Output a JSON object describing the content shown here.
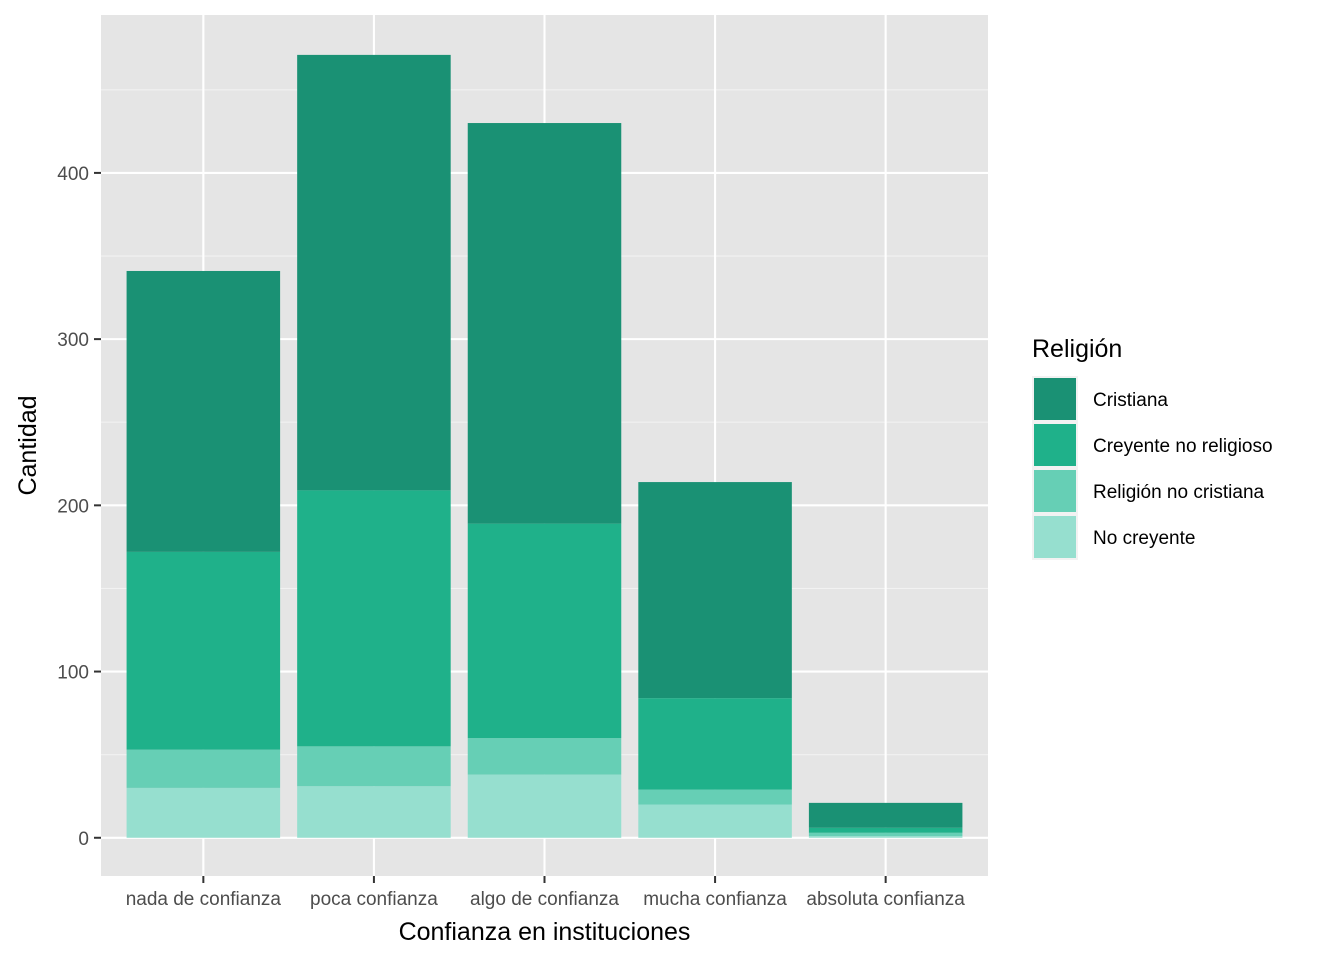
{
  "chart_data": {
    "type": "bar",
    "stacked": true,
    "title": "",
    "xlabel": "Confianza en instituciones",
    "ylabel": "Cantidad",
    "categories": [
      "nada de confianza",
      "poca confianza",
      "algo de confianza",
      "mucha confianza",
      "absoluta confianza"
    ],
    "series": [
      {
        "name": "No creyente",
        "color": "#96DFCF",
        "values": [
          30,
          31,
          38,
          20,
          1
        ]
      },
      {
        "name": "Religión no cristiana",
        "color": "#66CFB5",
        "values": [
          23,
          24,
          22,
          9,
          2
        ]
      },
      {
        "name": "Creyente no religioso",
        "color": "#1FB18A",
        "values": [
          119,
          154,
          129,
          55,
          3
        ]
      },
      {
        "name": "Cristiana",
        "color": "#1A9174",
        "values": [
          169,
          262,
          241,
          130,
          15
        ]
      }
    ],
    "ylim": [
      -23,
      495
    ],
    "yticks": [
      0,
      100,
      200,
      300,
      400
    ],
    "grid": true,
    "legend": {
      "title": "Religión",
      "placement": "right",
      "order": [
        "Cristiana",
        "Creyente no religioso",
        "Religión no cristiana",
        "No creyente"
      ]
    }
  }
}
